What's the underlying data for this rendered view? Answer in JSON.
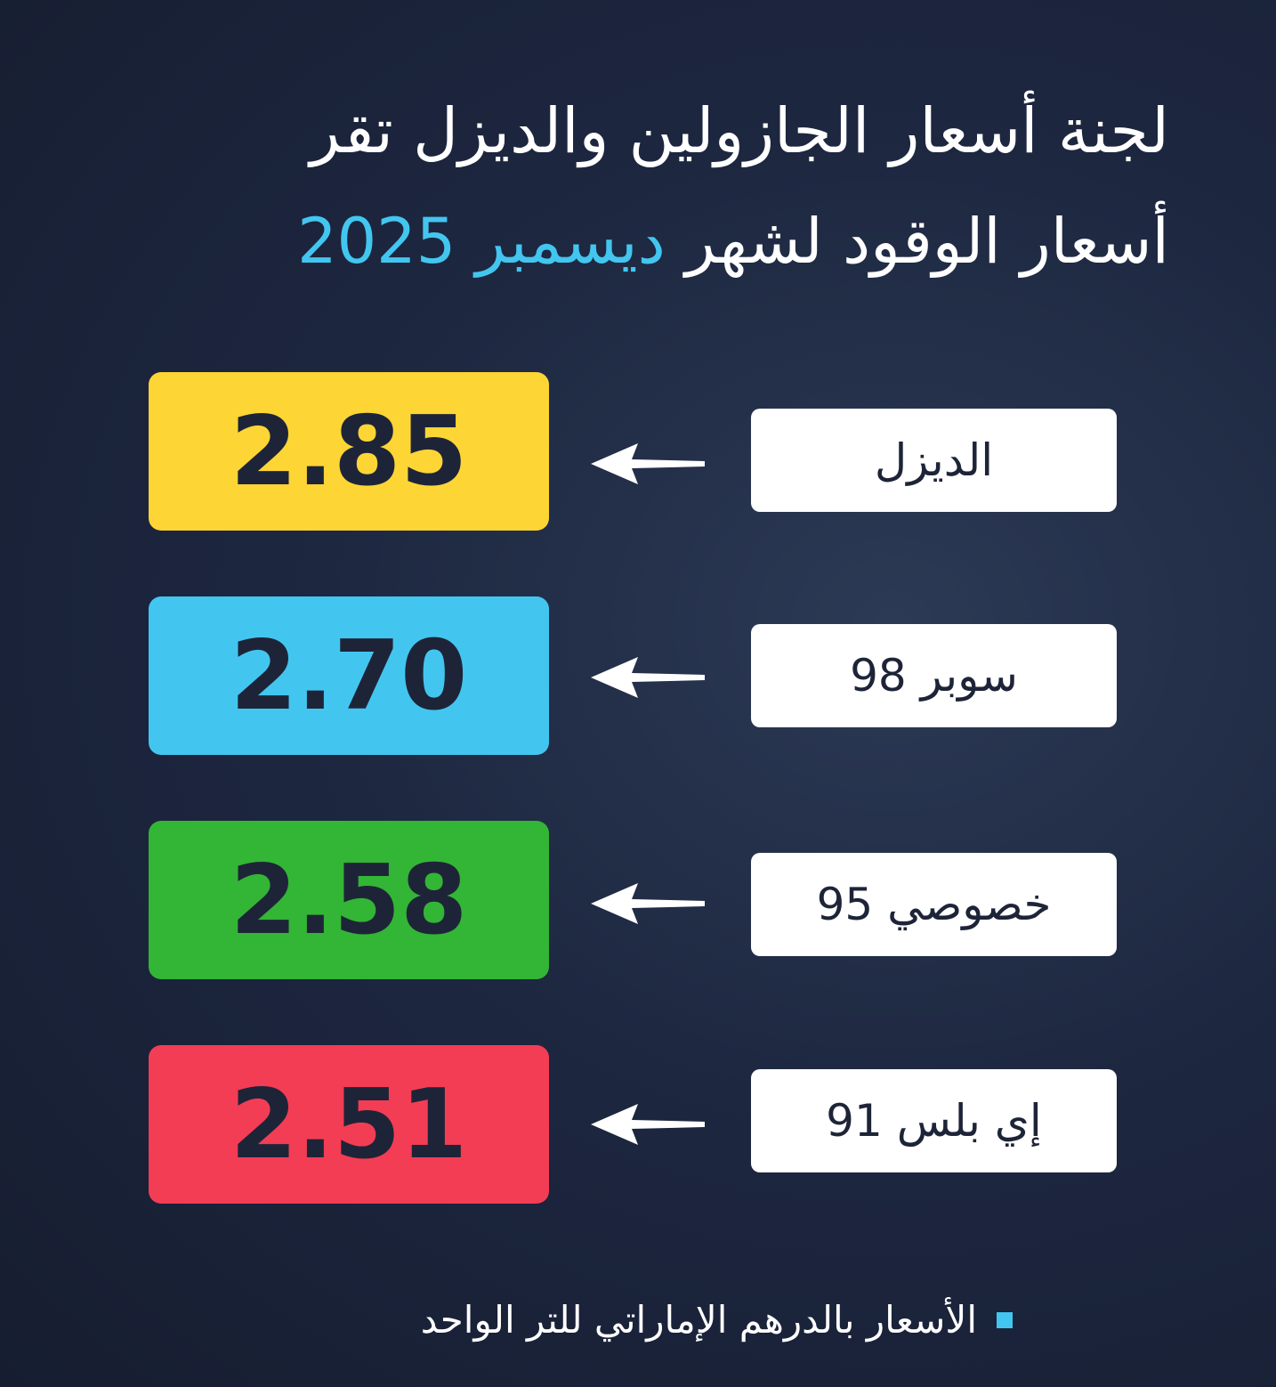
{
  "title": {
    "line1": "لجنة أسعار الجازولين والديزل تقر",
    "line2_prefix": "أسعار الوقود لشهر",
    "line2_highlight": "ديسمبر 2025"
  },
  "fuels": [
    {
      "label": "الديزل",
      "price": "2.85",
      "color": "#fdd535"
    },
    {
      "label": "سوبر 98",
      "price": "2.70",
      "color": "#42c6ef"
    },
    {
      "label": "خصوصي 95",
      "price": "2.58",
      "color": "#33b535"
    },
    {
      "label": "إي بلس 91",
      "price": "2.51",
      "color": "#f33d55"
    }
  ],
  "arrow_icon": "arrow-left-icon",
  "footnote": "الأسعار بالدرهم الإماراتي للتر الواحد",
  "accent_color": "#42c6ef"
}
